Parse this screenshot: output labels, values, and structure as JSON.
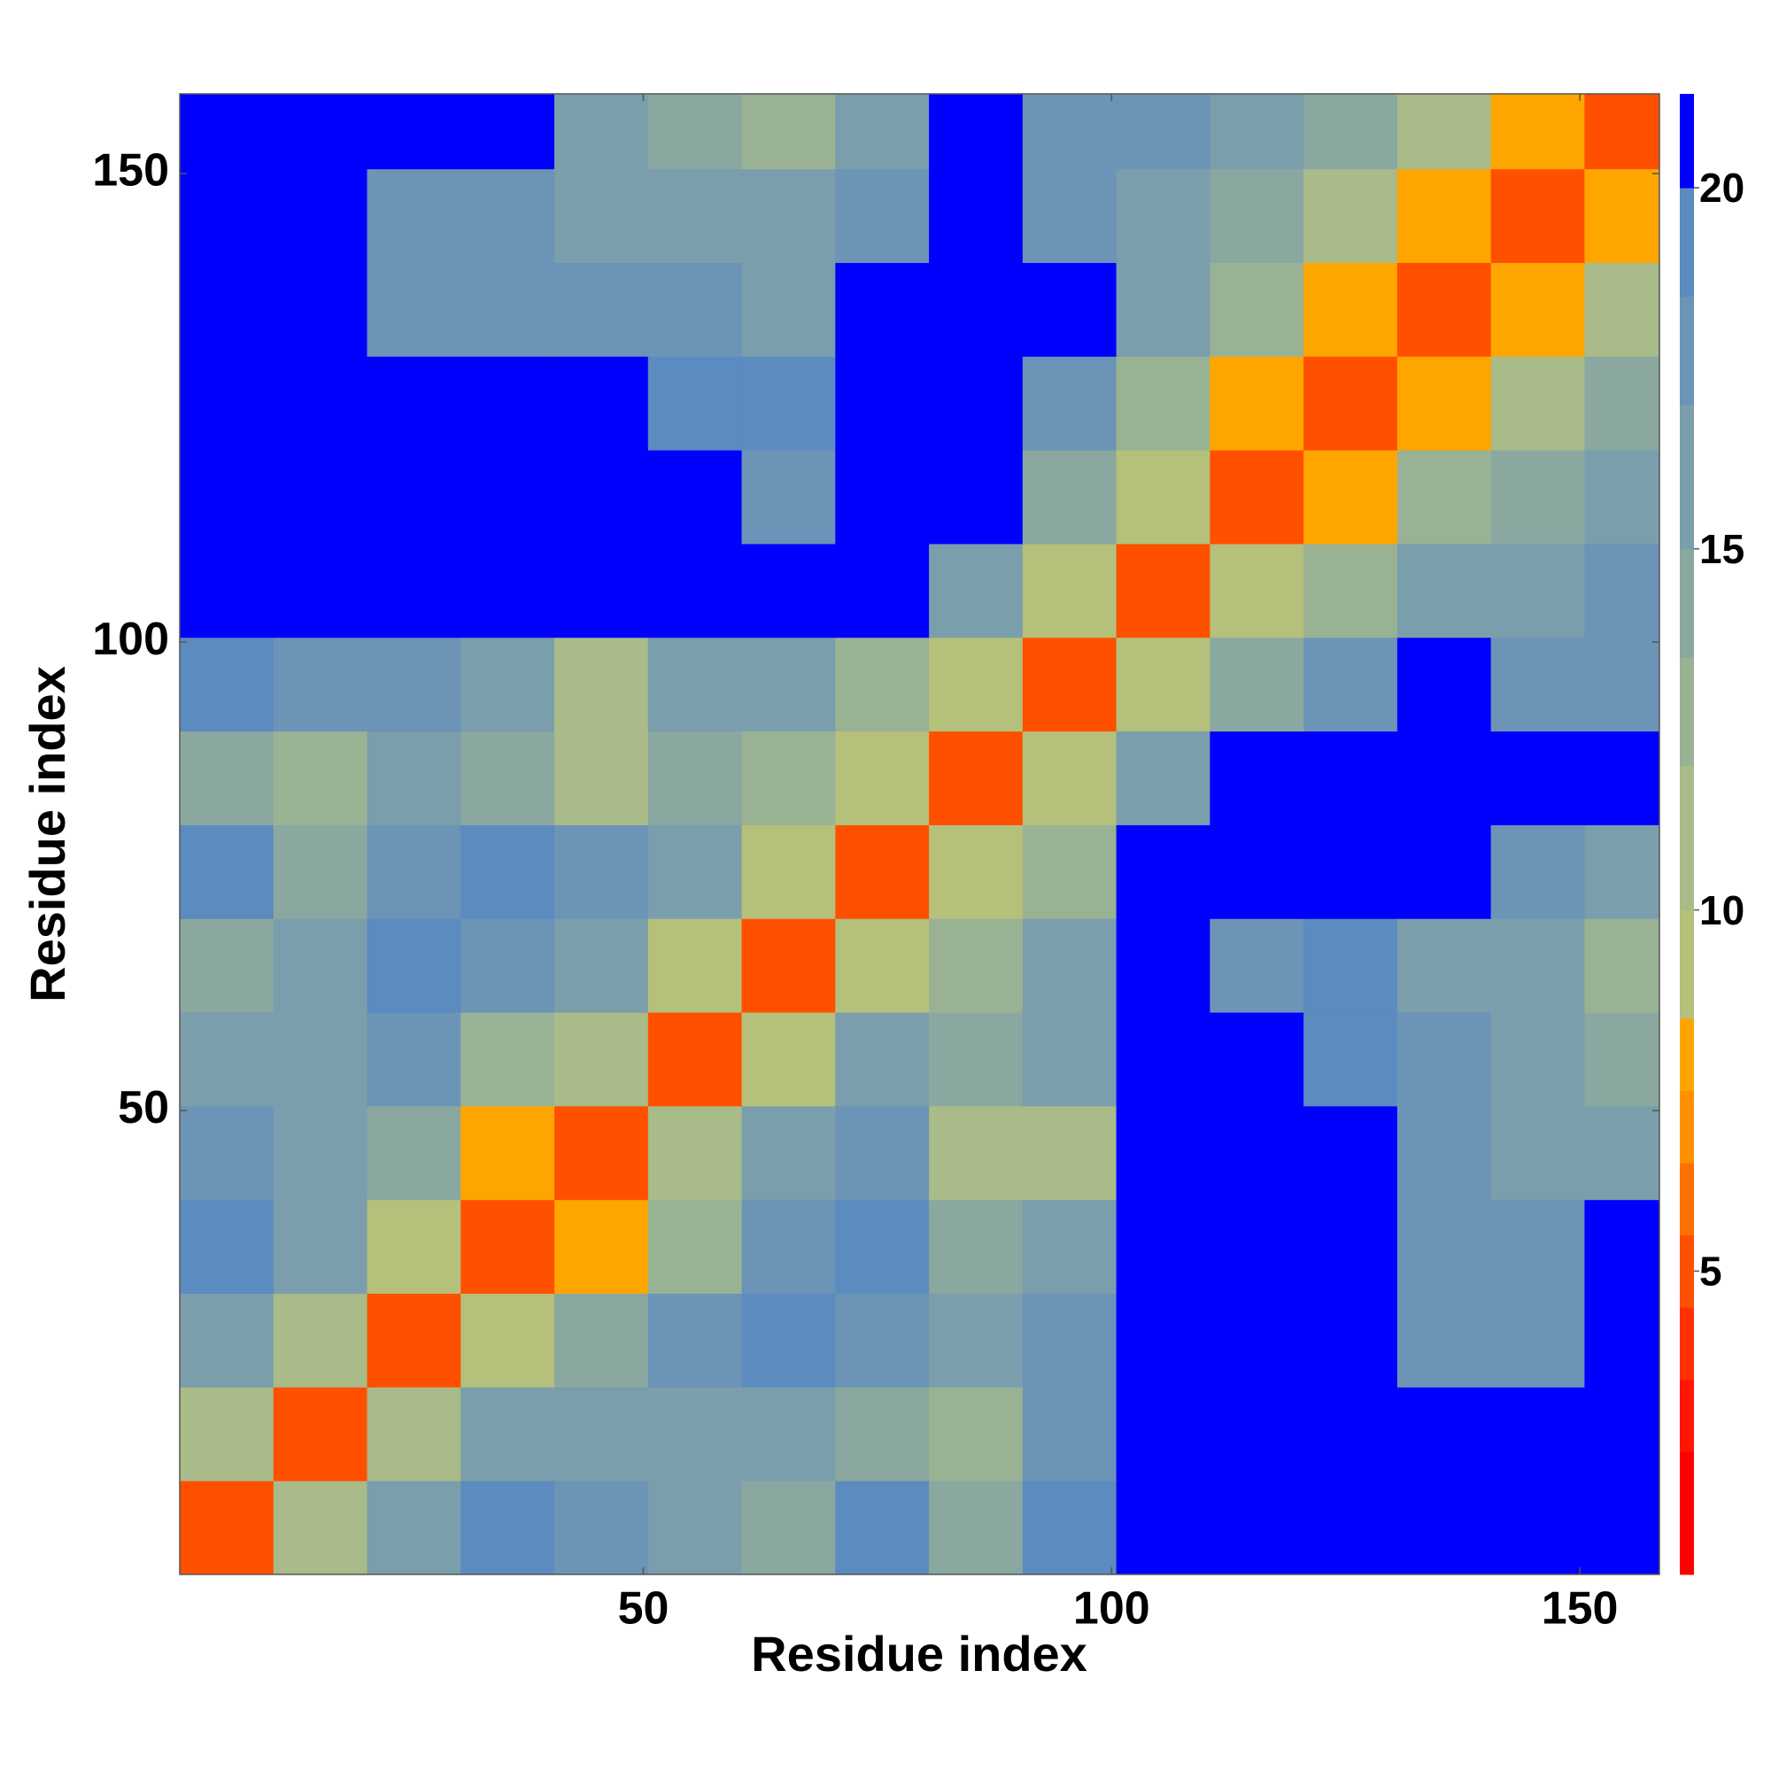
{
  "chart_data": {
    "type": "heatmap",
    "xlabel": "Residue index",
    "ylabel": "Residue index",
    "xbins": [
      0.5,
      10.5,
      20.5,
      30.5,
      40.5,
      50.5,
      60.5,
      70.5,
      80.5,
      90.5,
      100.5,
      110.5,
      120.5,
      130.5,
      140.5,
      150.5,
      158.5
    ],
    "ybins": [
      0.5,
      10.5,
      20.5,
      30.5,
      40.5,
      50.5,
      60.5,
      70.5,
      80.5,
      90.5,
      100.5,
      110.5,
      120.5,
      130.5,
      140.5,
      150.5,
      158.5
    ],
    "values": [
      [
        5,
        11,
        16,
        19,
        17,
        15,
        14,
        19,
        14,
        19,
        22,
        22,
        22,
        22,
        22,
        22
      ],
      [
        11,
        5,
        11,
        15,
        16,
        15,
        16,
        14,
        13,
        18,
        22,
        22,
        22,
        22,
        22,
        22
      ],
      [
        16,
        11,
        5,
        9,
        14,
        18,
        19,
        18,
        15,
        17,
        23,
        23,
        23,
        17,
        17,
        22
      ],
      [
        19,
        15,
        9,
        5,
        8,
        13,
        17,
        19,
        14,
        15,
        23,
        23,
        23,
        18,
        17,
        20
      ],
      [
        17,
        16,
        14,
        8,
        5,
        10,
        16,
        18,
        11,
        11,
        22,
        22,
        20,
        18,
        16,
        16
      ],
      [
        15,
        15,
        18,
        13,
        10,
        5,
        9,
        15,
        14,
        15,
        22,
        20,
        19,
        17,
        16,
        14
      ],
      [
        14,
        16,
        19,
        17,
        16,
        9,
        5,
        9,
        13,
        15,
        21,
        17,
        19,
        16,
        16,
        13
      ],
      [
        19,
        14,
        18,
        19,
        18,
        15,
        9,
        5,
        9,
        13,
        21,
        20,
        22,
        20,
        18,
        16
      ],
      [
        14,
        13,
        15,
        14,
        11,
        14,
        13,
        9,
        5,
        9,
        16,
        21,
        22,
        22,
        22,
        22
      ],
      [
        19,
        18,
        17,
        15,
        11,
        15,
        15,
        13,
        9,
        5,
        9,
        14,
        17,
        20,
        18,
        18
      ],
      [
        22,
        22,
        23,
        23,
        22,
        22,
        21,
        21,
        16,
        9,
        5,
        9,
        13,
        15,
        15,
        17
      ],
      [
        22,
        22,
        23,
        23,
        22,
        20,
        17,
        20,
        21,
        14,
        9,
        5,
        8,
        12,
        14,
        15
      ],
      [
        22,
        22,
        23,
        23,
        20,
        19,
        19,
        22,
        22,
        17,
        13,
        8,
        5,
        8,
        11,
        14
      ],
      [
        22,
        22,
        17,
        18,
        18,
        17,
        16,
        20,
        22,
        20,
        15,
        12,
        8,
        5,
        8,
        10
      ],
      [
        22,
        22,
        17,
        17,
        16,
        16,
        16,
        18,
        22,
        18,
        15,
        14,
        11,
        8,
        5,
        8
      ],
      [
        22,
        22,
        22,
        20,
        16,
        14,
        13,
        16,
        22,
        18,
        17,
        15,
        14,
        10,
        8,
        5
      ]
    ],
    "xlim": [
      0.5,
      158.5
    ],
    "ylim": [
      0.5,
      158.5
    ],
    "xticks": [
      50,
      100,
      150
    ],
    "yticks": [
      50,
      100,
      150
    ],
    "colorbar": {
      "lim": [
        0.8,
        21.3
      ],
      "ticks": [
        5,
        10,
        15,
        20
      ],
      "bounds": [
        0.8,
        2.5,
        3.5,
        4.5,
        5.5,
        6.5,
        7.5,
        8.5,
        10,
        12,
        13.5,
        15,
        17,
        18.5,
        20,
        21.3
      ],
      "colors": [
        "#ff0000",
        "#ff1500",
        "#ff3000",
        "#ff5000",
        "#ff7000",
        "#ff9000",
        "#ffa500",
        "#b5c07a",
        "#a8bb88",
        "#9ab294",
        "#8aa8a0",
        "#7a9eac",
        "#6b94b6",
        "#5b8bbf",
        "#0000ff"
      ]
    }
  }
}
